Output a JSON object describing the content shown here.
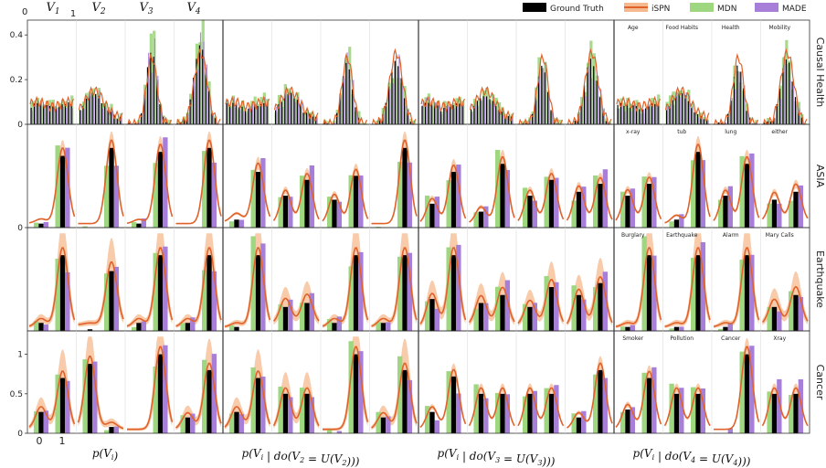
{
  "chart_data": {
    "type": "bar",
    "legend": {
      "placement": "top-right",
      "entries": [
        {
          "name": "Ground Truth",
          "color": "#000000",
          "kind": "bar"
        },
        {
          "name": "iSPN",
          "color": "#e0622a",
          "kind": "line-band"
        },
        {
          "name": "MDN",
          "color": "#9fd680",
          "kind": "bar"
        },
        {
          "name": "MADE",
          "color": "#a77fd9",
          "kind": "bar"
        }
      ]
    },
    "top_axis": {
      "tick_labels": [
        "0",
        "1"
      ],
      "variables": [
        "V_1",
        "V_2",
        "V_3",
        "V_4"
      ]
    },
    "bottom_axis": {
      "tick_labels": [
        "0",
        "1"
      ]
    },
    "column_titles": [
      "p(V_i)",
      "p(V_i | do(V_2 = U(V_2)))",
      "p(V_i | do(V_3 = U(V_3)))",
      "p(V_i | do(V_4 = U(V_4)))"
    ],
    "rows": [
      {
        "name": "Causal Health",
        "ylim": [
          0,
          0.45
        ],
        "yticks": [
          "0",
          "0.2",
          "0.4"
        ],
        "var_names": [
          "Age",
          "Food Habits",
          "Health",
          "Mobility"
        ],
        "kind": "continuous"
      },
      {
        "name": "ASIA",
        "ylim": [
          0,
          1.25
        ],
        "yticks": [
          "0"
        ],
        "var_names": [
          "x-ray",
          "tub",
          "lung",
          "either"
        ],
        "kind": "binary",
        "values": [
          [
            [
              0.05,
              0.9
            ],
            [
              0.0,
              1.0
            ],
            [
              0.05,
              0.95
            ],
            [
              0.0,
              1.0
            ]
          ],
          [
            [
              0.1,
              0.7
            ],
            [
              0.4,
              0.6
            ],
            [
              0.35,
              0.65
            ],
            [
              0.0,
              1.0
            ]
          ],
          [
            [
              0.3,
              0.7
            ],
            [
              0.2,
              0.8
            ],
            [
              0.4,
              0.6
            ],
            [
              0.45,
              0.55
            ]
          ],
          [
            [
              0.4,
              0.55
            ],
            [
              0.1,
              0.95
            ],
            [
              0.4,
              0.8
            ],
            [
              0.35,
              0.45
            ]
          ]
        ]
      },
      {
        "name": "Earthquake",
        "ylim": [
          0,
          1.25
        ],
        "yticks": [],
        "var_names": [
          "Burglary",
          "Earthquake",
          "Alarm",
          "Mary Calls"
        ],
        "kind": "binary",
        "values": [
          [
            [
              0.1,
              0.95
            ],
            [
              0.02,
              0.75
            ],
            [
              0.1,
              0.95
            ],
            [
              0.1,
              0.95
            ]
          ],
          [
            [
              0.05,
              0.95
            ],
            [
              0.3,
              0.35
            ],
            [
              0.1,
              0.95
            ],
            [
              0.1,
              0.95
            ]
          ],
          [
            [
              0.4,
              0.95
            ],
            [
              0.35,
              0.45
            ],
            [
              0.3,
              0.55
            ],
            [
              0.45,
              0.6
            ]
          ],
          [
            [
              0.05,
              0.95
            ],
            [
              0.05,
              0.95
            ],
            [
              0.05,
              0.95
            ],
            [
              0.3,
              0.45
            ]
          ]
        ]
      },
      {
        "name": "Cancer",
        "ylim": [
          0,
          1.25
        ],
        "yticks": [
          "0",
          "0.5",
          "1"
        ],
        "var_names": [
          "Smoker",
          "Pollution",
          "Cancer",
          "Xray"
        ],
        "kind": "binary",
        "values": [
          [
            [
              0.27,
              0.7
            ],
            [
              0.88,
              0.08
            ],
            [
              0.0,
              1.0
            ],
            [
              0.2,
              0.8
            ]
          ],
          [
            [
              0.27,
              0.7
            ],
            [
              0.5,
              0.5
            ],
            [
              0.0,
              1.0
            ],
            [
              0.2,
              0.8
            ]
          ],
          [
            [
              0.27,
              0.72
            ],
            [
              0.5,
              0.5
            ],
            [
              0.5,
              0.5
            ],
            [
              0.2,
              0.8
            ]
          ],
          [
            [
              0.3,
              0.7
            ],
            [
              0.5,
              0.5
            ],
            [
              0.0,
              1.0
            ],
            [
              0.5,
              0.5
            ]
          ]
        ]
      }
    ]
  }
}
